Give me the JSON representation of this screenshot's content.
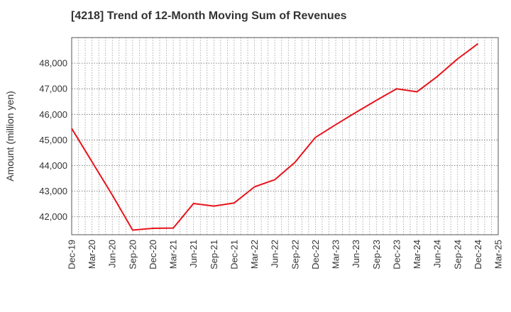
{
  "title": "[4218]  Trend of 12-Month Moving Sum of Revenues",
  "chart_data": {
    "type": "line",
    "title": "[4218]  Trend of 12-Month Moving Sum of Revenues",
    "xlabel": "",
    "ylabel": "Amount (million yen)",
    "categories": [
      "Dec-19",
      "Mar-20",
      "Jun-20",
      "Sep-20",
      "Dec-20",
      "Mar-21",
      "Jun-21",
      "Sep-21",
      "Dec-21",
      "Mar-22",
      "Jun-22",
      "Sep-22",
      "Dec-22",
      "Mar-23",
      "Jun-23",
      "Sep-23",
      "Dec-23",
      "Mar-24",
      "Jun-24",
      "Sep-24",
      "Dec-24",
      "Mar-25"
    ],
    "series": [
      {
        "color": "#e8141c",
        "values": [
          45450,
          44150,
          42850,
          41480,
          41550,
          41560,
          42520,
          42420,
          42540,
          43170,
          43450,
          44130,
          45100,
          45600,
          46080,
          46550,
          47000,
          46880,
          47480,
          48170,
          48760,
          null
        ]
      }
    ],
    "ylim": [
      41300,
      49000
    ],
    "yticks": [
      42000,
      43000,
      44000,
      45000,
      46000,
      47000,
      48000
    ],
    "ytick_labels": [
      "42,000",
      "43,000",
      "44,000",
      "45,000",
      "46,000",
      "47,000",
      "48,000"
    ],
    "grid": true,
    "legend": "none"
  }
}
